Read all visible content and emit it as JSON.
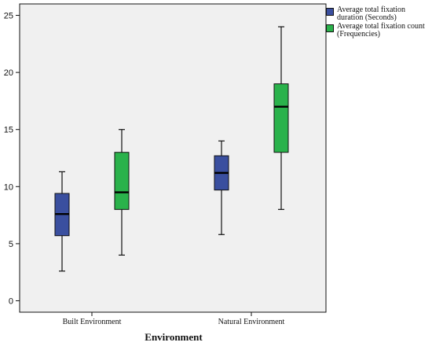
{
  "chart_data": {
    "type": "box",
    "categories": [
      "Built Environment",
      "Natural Environment"
    ],
    "xlabel": "Environment",
    "ylabel": "",
    "ylim": [
      -1,
      26
    ],
    "yticks": [
      0,
      5,
      10,
      15,
      20,
      25
    ],
    "grid": false,
    "legend_position": "top-right",
    "background": "#f0f0f0",
    "series": [
      {
        "name": "Average total fixation duration (Seconds)",
        "color": "#3a4f9f",
        "boxes": [
          {
            "min": 2.6,
            "q1": 5.7,
            "median": 7.6,
            "q3": 9.4,
            "max": 11.3
          },
          {
            "min": 5.8,
            "q1": 9.7,
            "median": 11.2,
            "q3": 12.7,
            "max": 14.0
          }
        ]
      },
      {
        "name": "Average total fixation count (Frequencies)",
        "color": "#2ab24b",
        "boxes": [
          {
            "min": 4.0,
            "q1": 8.0,
            "median": 9.5,
            "q3": 13.0,
            "max": 15.0
          },
          {
            "min": 8.0,
            "q1": 13.0,
            "median": 17.0,
            "q3": 19.0,
            "max": 24.0
          }
        ]
      }
    ]
  }
}
